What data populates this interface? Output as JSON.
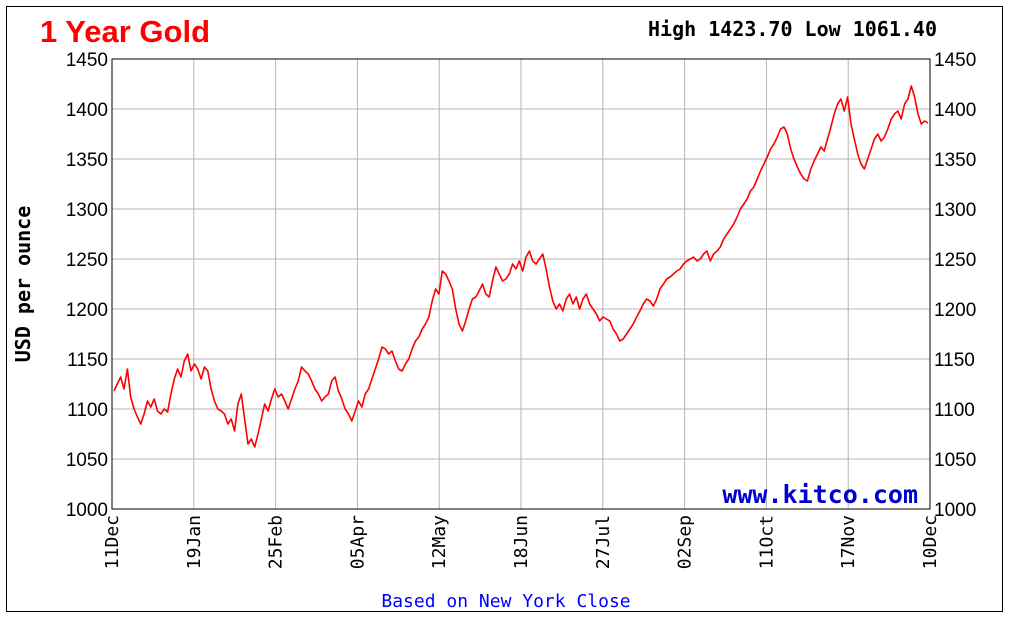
{
  "title": "1 Year Gold",
  "high_low": "High 1423.70 Low 1061.40",
  "watermark": "www.kitco.com",
  "footer": "Based on New York Close",
  "colors": {
    "title": "#ff0000",
    "line": "#ff0000",
    "grid": "#b4b4b4",
    "watermark": "#0000cc",
    "footer": "#0000ff",
    "frame": "#000000"
  },
  "chart_data": {
    "type": "line",
    "title": "1 Year Gold",
    "ylabel": "USD per ounce",
    "xlabel": "",
    "ylim": [
      1000,
      1450
    ],
    "yticks": [
      1000,
      1050,
      1100,
      1150,
      1200,
      1250,
      1300,
      1350,
      1400,
      1450
    ],
    "x_tick_labels": [
      "11Dec",
      "19Jan",
      "25Feb",
      "05Apr",
      "12May",
      "18Jun",
      "27Jul",
      "02Sep",
      "11Oct",
      "17Nov",
      "10Dec"
    ],
    "grid": true,
    "high": 1423.7,
    "low": 1061.4,
    "series": [
      {
        "values": [
          1118,
          1125,
          1132,
          1120,
          1140,
          1112,
          1100,
          1092,
          1085,
          1095,
          1108,
          1102,
          1110,
          1098,
          1095,
          1100,
          1097,
          1115,
          1130,
          1140,
          1132,
          1148,
          1155,
          1138,
          1145,
          1140,
          1130,
          1142,
          1138,
          1120,
          1108,
          1100,
          1098,
          1095,
          1085,
          1090,
          1078,
          1105,
          1115,
          1090,
          1065,
          1070,
          1062,
          1075,
          1090,
          1105,
          1098,
          1110,
          1120,
          1112,
          1115,
          1108,
          1100,
          1110,
          1120,
          1128,
          1142,
          1138,
          1135,
          1128,
          1120,
          1115,
          1108,
          1112,
          1115,
          1128,
          1132,
          1118,
          1110,
          1100,
          1095,
          1088,
          1098,
          1108,
          1102,
          1115,
          1120,
          1130,
          1140,
          1150,
          1162,
          1160,
          1155,
          1158,
          1148,
          1140,
          1138,
          1145,
          1150,
          1160,
          1168,
          1172,
          1180,
          1185,
          1192,
          1208,
          1220,
          1215,
          1238,
          1235,
          1228,
          1220,
          1200,
          1185,
          1178,
          1188,
          1200,
          1210,
          1212,
          1218,
          1225,
          1215,
          1212,
          1228,
          1242,
          1235,
          1228,
          1230,
          1235,
          1245,
          1240,
          1248,
          1238,
          1252,
          1258,
          1248,
          1245,
          1250,
          1255,
          1240,
          1222,
          1208,
          1200,
          1205,
          1198,
          1210,
          1215,
          1205,
          1212,
          1200,
          1210,
          1215,
          1205,
          1200,
          1195,
          1188,
          1192,
          1190,
          1188,
          1180,
          1175,
          1168,
          1170,
          1175,
          1180,
          1185,
          1192,
          1198,
          1205,
          1210,
          1208,
          1203,
          1210,
          1220,
          1225,
          1230,
          1232,
          1235,
          1238,
          1240,
          1245,
          1248,
          1250,
          1252,
          1248,
          1250,
          1255,
          1258,
          1248,
          1255,
          1258,
          1262,
          1270,
          1275,
          1280,
          1285,
          1292,
          1300,
          1305,
          1310,
          1318,
          1322,
          1330,
          1338,
          1345,
          1352,
          1360,
          1365,
          1372,
          1380,
          1382,
          1375,
          1360,
          1350,
          1342,
          1335,
          1330,
          1328,
          1340,
          1348,
          1355,
          1362,
          1358,
          1370,
          1382,
          1395,
          1405,
          1410,
          1398,
          1412,
          1385,
          1370,
          1355,
          1345,
          1340,
          1350,
          1360,
          1370,
          1375,
          1368,
          1372,
          1380,
          1390,
          1395,
          1398,
          1390,
          1405,
          1410,
          1423,
          1412,
          1395,
          1385,
          1388,
          1386
        ]
      }
    ]
  }
}
